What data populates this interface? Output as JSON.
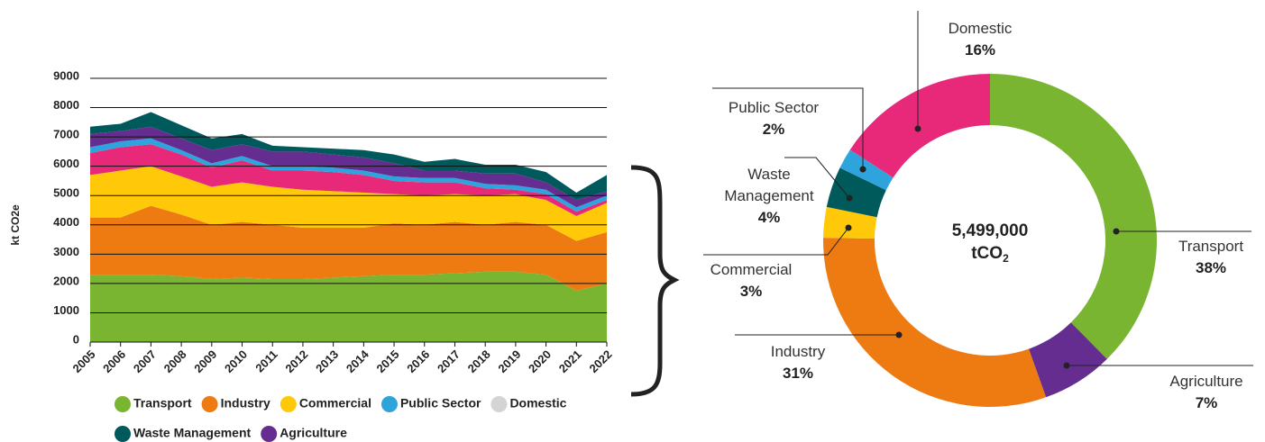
{
  "chart_data": [
    {
      "type": "area",
      "stacked": true,
      "ylabel": "kt CO2e",
      "categories": [
        "2005",
        "2006",
        "2007",
        "2008",
        "2009",
        "2010",
        "2011",
        "2012",
        "2013",
        "2014",
        "2015",
        "2016",
        "2017",
        "2018",
        "2019",
        "2020",
        "2021",
        "2022"
      ],
      "ylim": [
        0,
        9000
      ],
      "yticks": [
        0,
        1000,
        2000,
        3000,
        4000,
        5000,
        6000,
        7000,
        8000,
        9000
      ],
      "grid": true,
      "stack_order": [
        0,
        1,
        2,
        4,
        3,
        6,
        5
      ],
      "series": [
        {
          "name": "Transport",
          "color": "#7ab532",
          "values": [
            2300,
            2300,
            2300,
            2250,
            2150,
            2200,
            2150,
            2150,
            2200,
            2250,
            2300,
            2300,
            2350,
            2400,
            2400,
            2300,
            1750,
            2000
          ]
        },
        {
          "name": "Industry",
          "color": "#ee7b11",
          "values": [
            1950,
            1950,
            2350,
            2100,
            1850,
            1900,
            1850,
            1750,
            1700,
            1650,
            1750,
            1700,
            1750,
            1600,
            1700,
            1700,
            1700,
            1750
          ]
        },
        {
          "name": "Commercial",
          "color": "#ffc90a",
          "values": [
            1450,
            1600,
            1350,
            1300,
            1300,
            1350,
            1300,
            1300,
            1250,
            1200,
            1000,
            1000,
            950,
            1000,
            950,
            850,
            850,
            1000
          ]
        },
        {
          "name": "Public Sector",
          "color": "#2ea3dc",
          "values": [
            200,
            200,
            200,
            150,
            150,
            150,
            150,
            150,
            150,
            150,
            150,
            150,
            150,
            150,
            150,
            150,
            150,
            150
          ]
        },
        {
          "name": "Domestic",
          "color": "#e8297a",
          "legend_color": "#d4d4d4",
          "values": [
            750,
            800,
            750,
            750,
            650,
            750,
            550,
            650,
            650,
            600,
            450,
            450,
            400,
            250,
            150,
            200,
            150,
            100
          ]
        },
        {
          "name": "Waste Management",
          "color": "#005a5b",
          "values": [
            250,
            250,
            500,
            450,
            400,
            350,
            200,
            150,
            200,
            250,
            300,
            300,
            400,
            300,
            300,
            350,
            250,
            550
          ]
        },
        {
          "name": "Agriculture",
          "color": "#662d91",
          "values": [
            450,
            350,
            400,
            400,
            450,
            400,
            500,
            500,
            450,
            450,
            450,
            250,
            250,
            350,
            400,
            250,
            250,
            150
          ]
        }
      ]
    },
    {
      "type": "donut",
      "center_label": "5,499,000",
      "center_unit": "tCO",
      "center_unit_sub": "2",
      "categories": [
        "Transport",
        "Agriculture",
        "Industry",
        "Commercial",
        "Waste Management",
        "Public Sector",
        "Domestic"
      ],
      "values": [
        38,
        7,
        31,
        3,
        4,
        2,
        16
      ],
      "value_labels": [
        "38%",
        "7%",
        "31%",
        "3%",
        "4%",
        "2%",
        "16%"
      ],
      "colors": [
        "#7ab532",
        "#662d91",
        "#ee7b11",
        "#ffc90a",
        "#005a5b",
        "#2ea3dc",
        "#e8297a"
      ]
    }
  ]
}
